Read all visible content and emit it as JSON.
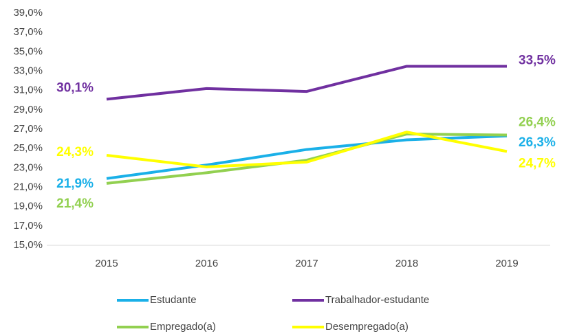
{
  "chart_data": {
    "type": "line",
    "categories": [
      "2015",
      "2016",
      "2017",
      "2018",
      "2019"
    ],
    "series": [
      {
        "name": "Estudante",
        "color": "#1ab0e8",
        "values": [
          21.9,
          23.3,
          24.9,
          25.9,
          26.3
        ],
        "value_labels": [
          "21,9%",
          null,
          null,
          null,
          "26,3%"
        ]
      },
      {
        "name": "Trabalhador-estudante",
        "color": "#7030a0",
        "values": [
          30.1,
          31.2,
          30.9,
          33.5,
          33.5
        ],
        "value_labels": [
          "30,1%",
          null,
          null,
          null,
          "33,5%"
        ]
      },
      {
        "name": "Empregado(a)",
        "color": "#92d050",
        "values": [
          21.4,
          22.5,
          23.8,
          26.5,
          26.4
        ],
        "value_labels": [
          "21,4%",
          null,
          null,
          null,
          "26,4%"
        ]
      },
      {
        "name": "Desempregado(a)",
        "color": "#ffff00",
        "values": [
          24.3,
          23.1,
          23.6,
          26.7,
          24.7
        ],
        "value_labels": [
          "24,3%",
          null,
          null,
          null,
          "24,7%"
        ]
      }
    ],
    "ylim": [
      15,
      39
    ],
    "yticks": [
      {
        "value": 15,
        "label": "15,0%"
      },
      {
        "value": 17,
        "label": "17,0%"
      },
      {
        "value": 19,
        "label": "19,0%"
      },
      {
        "value": 21,
        "label": "21,0%"
      },
      {
        "value": 23,
        "label": "23,0%"
      },
      {
        "value": 25,
        "label": "25,0%"
      },
      {
        "value": 27,
        "label": "27,0%"
      },
      {
        "value": 29,
        "label": "29,0%"
      },
      {
        "value": 31,
        "label": "31,0%"
      },
      {
        "value": 33,
        "label": "33,0%"
      },
      {
        "value": 35,
        "label": "35,0%"
      },
      {
        "value": 37,
        "label": "37,0%"
      },
      {
        "value": 39,
        "label": "39,0%"
      }
    ],
    "grid": false,
    "legend": "bottom"
  }
}
